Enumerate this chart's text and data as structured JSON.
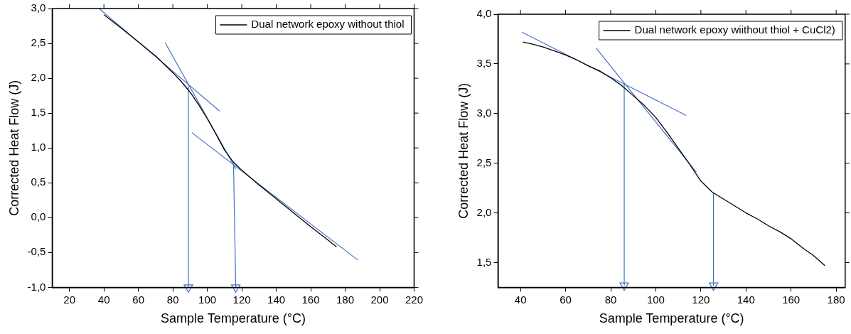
{
  "chart_data": [
    {
      "type": "line",
      "xlabel": "Sample Temperature (°C)",
      "ylabel": "Corrected Heat Flow (J)",
      "xlim": [
        10,
        220
      ],
      "xticks": [
        20,
        40,
        60,
        80,
        100,
        120,
        140,
        160,
        180,
        200,
        220
      ],
      "ylim": [
        -1,
        3
      ],
      "yticks": [
        {
          "value": -1,
          "label": "-1,0"
        },
        {
          "value": -0.5,
          "label": "-0,5"
        },
        {
          "value": 0,
          "label": "0,0"
        },
        {
          "value": 0.5,
          "label": "0,5"
        },
        {
          "value": 1,
          "label": "1,0"
        },
        {
          "value": 1.5,
          "label": "1,5"
        },
        {
          "value": 2,
          "label": "2,0"
        },
        {
          "value": 2.5,
          "label": "2,5"
        },
        {
          "value": 3,
          "label": "3,0"
        }
      ],
      "grid": false,
      "legend": "top right",
      "series": [
        {
          "name": "Dual network epoxy without thiol",
          "color": "#000000",
          "x": [
            40,
            50,
            60,
            70,
            80,
            85,
            90,
            95,
            100,
            105,
            110,
            115,
            120,
            130,
            140,
            150,
            160,
            170,
            175
          ],
          "values": [
            2.91,
            2.72,
            2.52,
            2.32,
            2.08,
            1.95,
            1.8,
            1.62,
            1.42,
            1.2,
            0.97,
            0.8,
            0.68,
            0.47,
            0.27,
            0.07,
            -0.13,
            -0.32,
            -0.42
          ]
        },
        {
          "type": "line",
          "color": "#4472c4",
          "x": [
            37.2,
            107.1
          ],
          "values": [
            3.0,
            1.53
          ]
        },
        {
          "type": "line",
          "color": "#4472c4",
          "x": [
            75.5,
            116.5
          ],
          "values": [
            2.51,
            0.7
          ]
        },
        {
          "type": "line",
          "color": "#4472c4",
          "x": [
            91,
            187.4
          ],
          "values": [
            1.22,
            -0.61
          ]
        },
        {
          "type": "line",
          "color": "#4472c4",
          "x": [
            89,
            89
          ],
          "values": [
            1.89,
            -1.0
          ],
          "marker": "triangle"
        },
        {
          "type": "line",
          "color": "#4472c4",
          "x": [
            115.2,
            116.5
          ],
          "values": [
            0.78,
            -1.0
          ],
          "marker": "triangle"
        }
      ]
    },
    {
      "type": "line",
      "xlabel": "Sample Temperature (°C)",
      "ylabel": "Corrected Heat Flow (J)",
      "xlim": [
        30,
        184
      ],
      "xticks": [
        40,
        60,
        80,
        100,
        120,
        140,
        160,
        180
      ],
      "ylim": [
        1.25,
        4
      ],
      "yticks": [
        {
          "value": 1.5,
          "label": "1,5"
        },
        {
          "value": 2,
          "label": "2,0"
        },
        {
          "value": 2.5,
          "label": "2,5"
        },
        {
          "value": 3,
          "label": "3,0"
        },
        {
          "value": 3.5,
          "label": "3,5"
        },
        {
          "value": 4,
          "label": "4,0"
        }
      ],
      "grid": false,
      "legend": "top right",
      "series": [
        {
          "name": "Dual network epoxy wiithout thiol + CuCl2)",
          "color": "#000000",
          "x": [
            41,
            45,
            50,
            55,
            60,
            65,
            70,
            75,
            80,
            85,
            90,
            95,
            100,
            105,
            110,
            115,
            120,
            125,
            130,
            135,
            140,
            145,
            150,
            155,
            160,
            165,
            170,
            175
          ],
          "values": [
            3.72,
            3.7,
            3.67,
            3.63,
            3.59,
            3.54,
            3.48,
            3.43,
            3.36,
            3.28,
            3.18,
            3.08,
            2.96,
            2.81,
            2.65,
            2.49,
            2.32,
            2.21,
            2.14,
            2.07,
            2.0,
            1.94,
            1.87,
            1.81,
            1.74,
            1.65,
            1.57,
            1.47
          ]
        },
        {
          "type": "line",
          "color": "#4472c4",
          "x": [
            40.6,
            113.5
          ],
          "values": [
            3.82,
            2.98
          ]
        },
        {
          "type": "line",
          "color": "#4472c4",
          "x": [
            73.5,
            118
          ],
          "values": [
            3.66,
            2.41
          ]
        },
        {
          "type": "line",
          "color": "#4472c4",
          "x": [
            86,
            86
          ],
          "values": [
            3.29,
            1.27
          ],
          "marker": "triangle"
        },
        {
          "type": "line",
          "color": "#4472c4",
          "x": [
            125.6,
            125.6
          ],
          "values": [
            2.2,
            1.27
          ],
          "marker": "triangle"
        }
      ]
    }
  ]
}
